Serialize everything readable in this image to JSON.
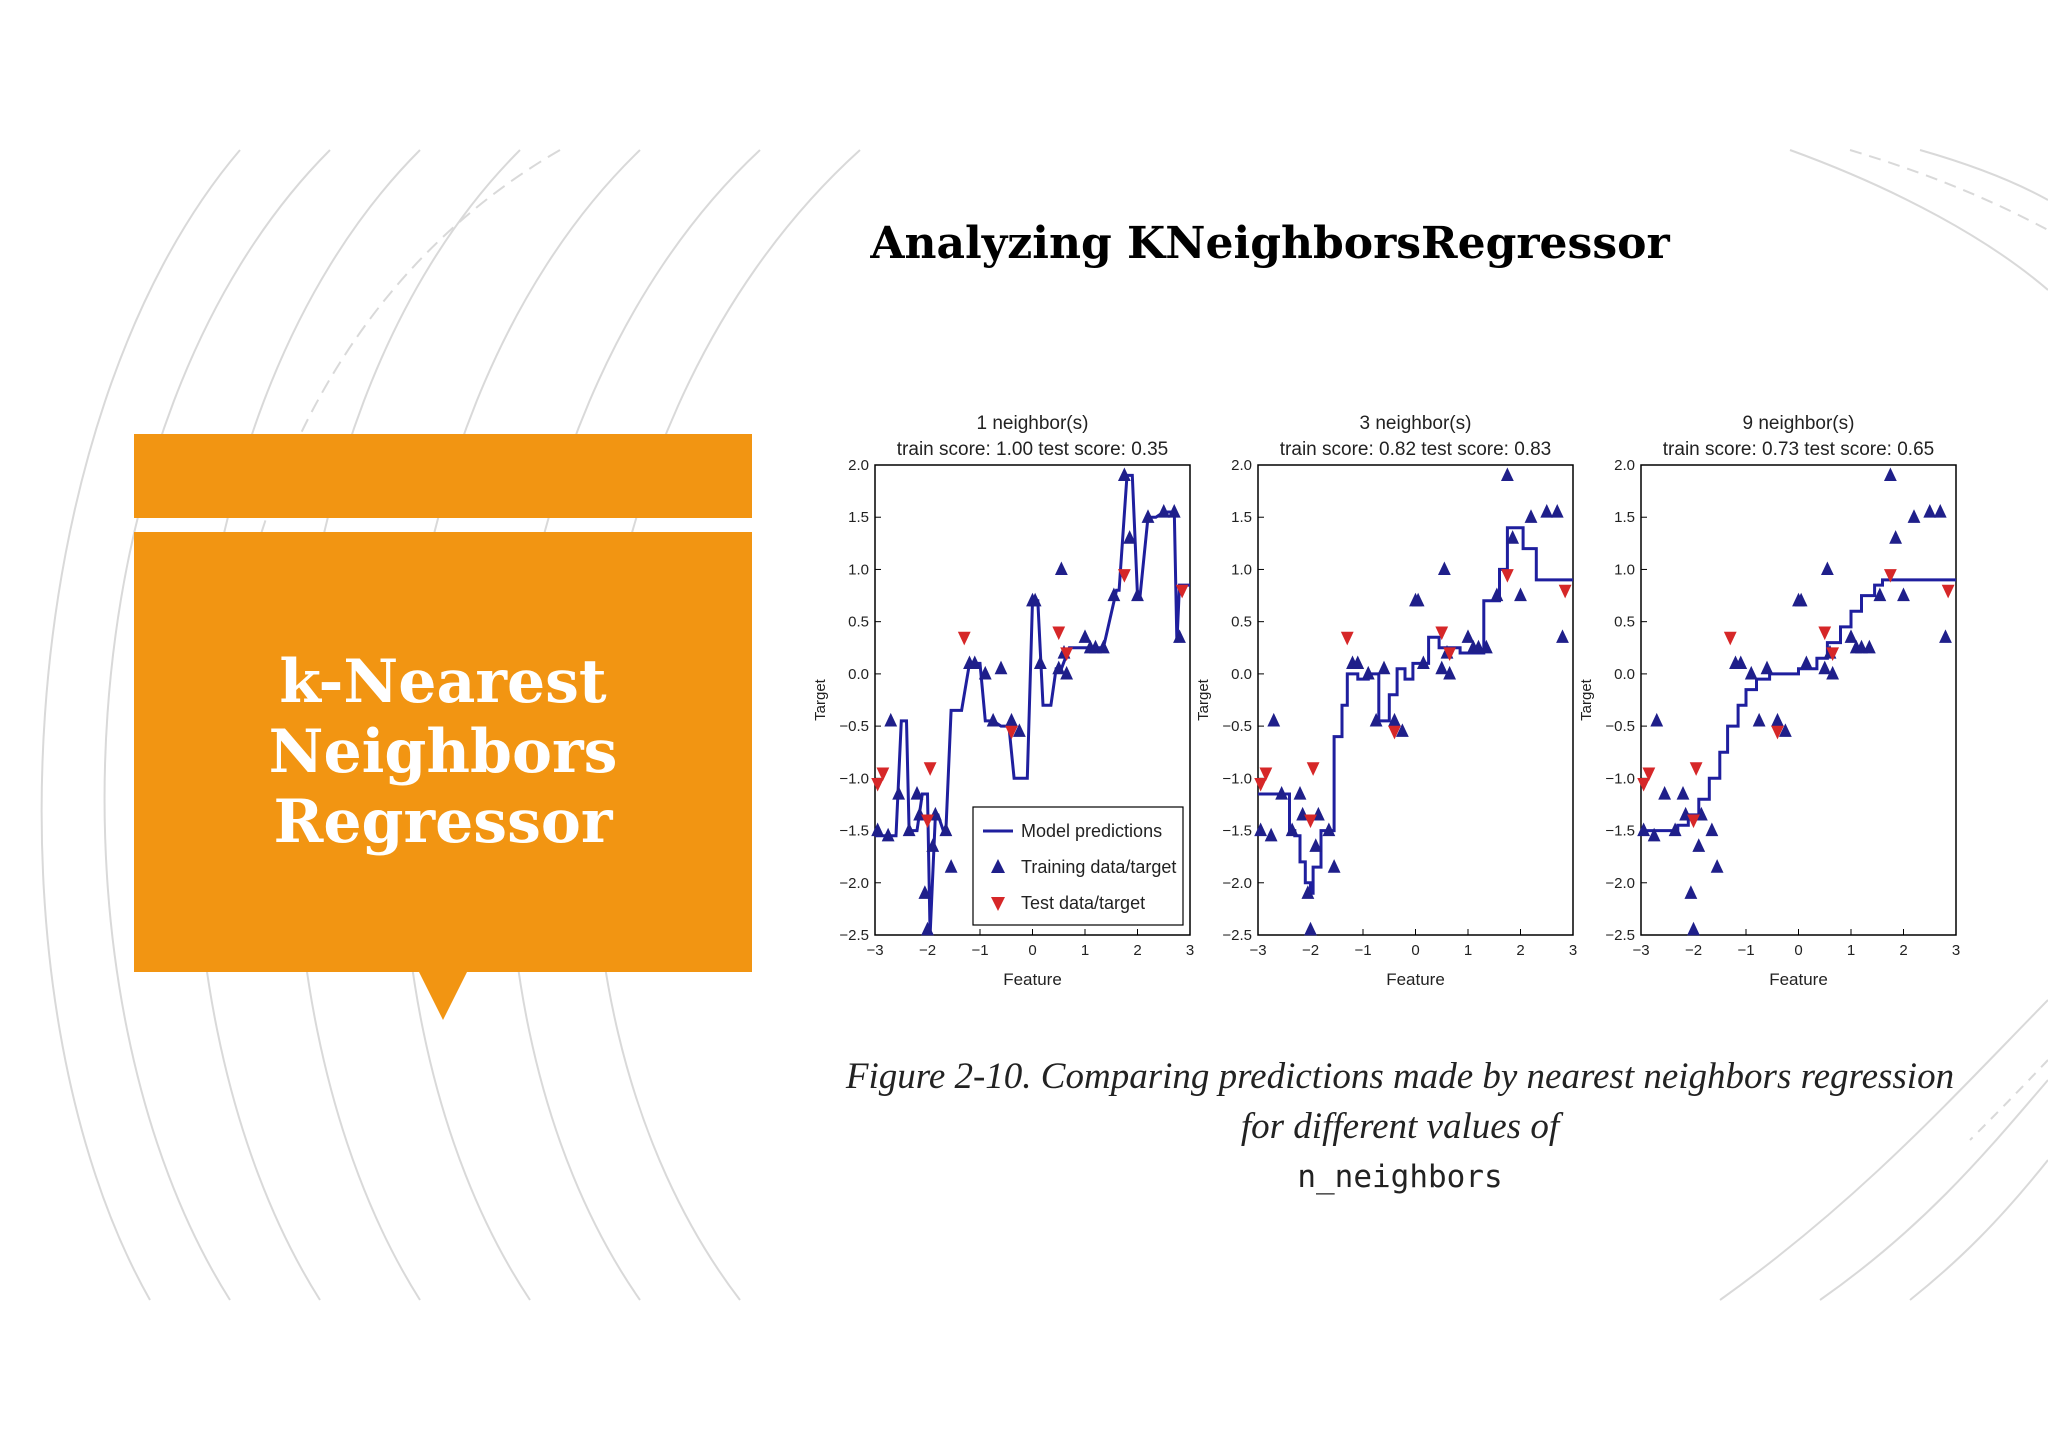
{
  "slide": {
    "title": "Analyzing KNeighborsRegressor",
    "box_title": "k-Nearest Neighbors Regressor",
    "caption": "Figure 2-10. Comparing predictions made by nearest neighbors regression for different values of",
    "caption_code": "n_neighbors",
    "accent_color": "#f29512",
    "decor_line_color": "#d9d9d9"
  },
  "chart_data": [
    {
      "type": "line",
      "title": "1 neighbor(s)",
      "subtitle": "train score: 1.00 test score: 0.35",
      "xlabel": "Feature",
      "ylabel": "Target",
      "xlim": [
        -3,
        3
      ],
      "ylim": [
        -2.5,
        2.0
      ],
      "xticks": [
        "−3",
        "−2",
        "−1",
        "0",
        "1",
        "2",
        "3"
      ],
      "yticks": [
        "2.0",
        "1.5",
        "1.0",
        "0.5",
        "0.0",
        "−0.5",
        "−1.0",
        "−1.5",
        "−2.0",
        "−2.5"
      ],
      "legend": {
        "position": "lower-right",
        "entries": [
          "Model predictions",
          "Training data/target",
          "Test data/target"
        ]
      },
      "series": [
        {
          "name": "Model predictions",
          "kind": "line",
          "color": "#1f1f9e",
          "x": [
            -3.0,
            -2.6,
            -2.5,
            -2.4,
            -2.35,
            -2.2,
            -2.1,
            -2.0,
            -1.95,
            -1.85,
            -1.8,
            -1.7,
            -1.65,
            -1.55,
            -1.35,
            -1.2,
            -1.0,
            -0.9,
            -0.75,
            -0.6,
            -0.45,
            -0.35,
            -0.1,
            0.0,
            0.1,
            0.2,
            0.35,
            0.45,
            0.55,
            0.7,
            0.85,
            1.1,
            1.25,
            1.35,
            1.6,
            1.65,
            1.8,
            1.9,
            2.0,
            2.05,
            2.2,
            2.35,
            2.5,
            2.7,
            2.75,
            2.8,
            3.0
          ],
          "y": [
            -1.55,
            -1.55,
            -0.45,
            -0.45,
            -1.5,
            -1.5,
            -1.15,
            -1.15,
            -2.5,
            -1.35,
            -1.35,
            -1.5,
            -1.5,
            -0.35,
            -0.35,
            0.1,
            0.1,
            -0.45,
            -0.45,
            -0.5,
            -0.5,
            -1.0,
            -1.0,
            0.7,
            0.7,
            -0.3,
            -0.3,
            0.05,
            0.05,
            0.25,
            0.25,
            0.25,
            0.25,
            0.25,
            0.8,
            0.8,
            1.9,
            1.9,
            0.75,
            0.75,
            1.5,
            1.5,
            1.55,
            1.55,
            0.3,
            0.85,
            0.85
          ]
        },
        {
          "name": "Training data/target",
          "kind": "markers",
          "marker": "triangle-up",
          "color": "#1f1f8a",
          "x": [
            -2.95,
            -2.75,
            -2.7,
            -2.55,
            -2.35,
            -2.2,
            -2.15,
            -2.05,
            -2.0,
            -1.9,
            -1.85,
            -1.65,
            -1.55,
            -1.2,
            -1.1,
            -0.9,
            -0.75,
            -0.6,
            -0.4,
            -0.25,
            0.0,
            0.05,
            0.15,
            0.5,
            0.55,
            0.6,
            0.65,
            1.0,
            1.1,
            1.2,
            1.35,
            1.55,
            1.75,
            1.85,
            2.0,
            2.2,
            2.5,
            2.7,
            2.8
          ],
          "y": [
            -1.5,
            -1.55,
            -0.45,
            -1.15,
            -1.5,
            -1.15,
            -1.35,
            -2.1,
            -2.45,
            -1.65,
            -1.35,
            -1.5,
            -1.85,
            0.1,
            0.1,
            0.0,
            -0.45,
            0.05,
            -0.45,
            -0.55,
            0.7,
            0.7,
            0.1,
            0.05,
            1.0,
            0.2,
            0.0,
            0.35,
            0.25,
            0.25,
            0.25,
            0.75,
            1.9,
            1.3,
            0.75,
            1.5,
            1.55,
            1.55,
            0.35
          ]
        },
        {
          "name": "Test data/target",
          "kind": "markers",
          "marker": "triangle-down",
          "color": "#d62728",
          "x": [
            -2.95,
            -2.85,
            -2.0,
            -1.95,
            -1.3,
            -0.4,
            0.5,
            0.65,
            1.75,
            2.85
          ],
          "y": [
            -1.05,
            -0.95,
            -1.4,
            -0.9,
            0.35,
            -0.55,
            0.4,
            0.2,
            0.95,
            0.8
          ]
        }
      ]
    },
    {
      "type": "line",
      "title": "3 neighbor(s)",
      "subtitle": "train score: 0.82 test score: 0.83",
      "xlabel": "Feature",
      "ylabel": "Target",
      "xlim": [
        -3,
        3
      ],
      "ylim": [
        -2.5,
        2.0
      ],
      "xticks": [
        "−3",
        "−2",
        "−1",
        "0",
        "1",
        "2",
        "3"
      ],
      "yticks": [
        "2.0",
        "1.5",
        "1.0",
        "0.5",
        "0.0",
        "−0.5",
        "−1.0",
        "−1.5",
        "−2.0",
        "−2.5"
      ],
      "series": [
        {
          "name": "Model predictions",
          "kind": "line",
          "color": "#1f1f9e",
          "x": [
            -3.0,
            -2.4,
            -2.4,
            -2.3,
            -2.3,
            -2.2,
            -2.2,
            -2.1,
            -2.1,
            -2.0,
            -2.0,
            -1.95,
            -1.95,
            -1.8,
            -1.8,
            -1.55,
            -1.55,
            -1.4,
            -1.4,
            -1.3,
            -1.3,
            -1.1,
            -1.1,
            -0.9,
            -0.9,
            -0.7,
            -0.7,
            -0.5,
            -0.5,
            -0.35,
            -0.35,
            -0.2,
            -0.2,
            -0.05,
            -0.05,
            0.25,
            0.25,
            0.45,
            0.45,
            0.85,
            0.85,
            1.05,
            1.05,
            1.3,
            1.3,
            1.6,
            1.6,
            1.75,
            1.75,
            2.05,
            2.05,
            2.3,
            2.3,
            2.5,
            2.5,
            3.0
          ],
          "y": [
            -1.15,
            -1.15,
            -1.5,
            -1.5,
            -1.55,
            -1.55,
            -1.8,
            -1.8,
            -2.0,
            -2.0,
            -2.1,
            -2.1,
            -1.85,
            -1.85,
            -1.5,
            -1.5,
            -0.6,
            -0.6,
            -0.3,
            -0.3,
            0.0,
            0.0,
            -0.05,
            -0.05,
            0.0,
            0.0,
            -0.45,
            -0.45,
            -0.2,
            -0.2,
            0.05,
            0.05,
            -0.05,
            -0.05,
            0.1,
            0.1,
            0.35,
            0.35,
            0.25,
            0.25,
            0.2,
            0.2,
            0.2,
            0.2,
            0.7,
            0.7,
            1.0,
            1.0,
            1.4,
            1.4,
            1.2,
            1.2,
            0.9,
            0.9,
            0.9,
            0.9
          ]
        },
        {
          "name": "Training data/target",
          "kind": "markers",
          "marker": "triangle-up",
          "color": "#1f1f8a",
          "x": [
            -2.95,
            -2.75,
            -2.7,
            -2.55,
            -2.35,
            -2.2,
            -2.15,
            -2.05,
            -2.0,
            -1.9,
            -1.85,
            -1.65,
            -1.55,
            -1.2,
            -1.1,
            -0.9,
            -0.75,
            -0.6,
            -0.4,
            -0.25,
            0.0,
            0.05,
            0.15,
            0.5,
            0.55,
            0.6,
            0.65,
            1.0,
            1.1,
            1.2,
            1.35,
            1.55,
            1.75,
            1.85,
            2.0,
            2.2,
            2.5,
            2.7,
            2.8
          ],
          "y": [
            -1.5,
            -1.55,
            -0.45,
            -1.15,
            -1.5,
            -1.15,
            -1.35,
            -2.1,
            -2.45,
            -1.65,
            -1.35,
            -1.5,
            -1.85,
            0.1,
            0.1,
            0.0,
            -0.45,
            0.05,
            -0.45,
            -0.55,
            0.7,
            0.7,
            0.1,
            0.05,
            1.0,
            0.2,
            0.0,
            0.35,
            0.25,
            0.25,
            0.25,
            0.75,
            1.9,
            1.3,
            0.75,
            1.5,
            1.55,
            1.55,
            0.35
          ]
        },
        {
          "name": "Test data/target",
          "kind": "markers",
          "marker": "triangle-down",
          "color": "#d62728",
          "x": [
            -2.95,
            -2.85,
            -2.0,
            -1.95,
            -1.3,
            -0.4,
            0.5,
            0.65,
            1.75,
            2.85
          ],
          "y": [
            -1.05,
            -0.95,
            -1.4,
            -0.9,
            0.35,
            -0.55,
            0.4,
            0.2,
            0.95,
            0.8
          ]
        }
      ]
    },
    {
      "type": "line",
      "title": "9 neighbor(s)",
      "subtitle": "train score: 0.73 test score: 0.65",
      "xlabel": "Feature",
      "ylabel": "Target",
      "xlim": [
        -3,
        3
      ],
      "ylim": [
        -2.5,
        2.0
      ],
      "xticks": [
        "−3",
        "−2",
        "−1",
        "0",
        "1",
        "2",
        "3"
      ],
      "yticks": [
        "2.0",
        "1.5",
        "1.0",
        "0.5",
        "0.0",
        "−0.5",
        "−1.0",
        "−1.5",
        "−2.0",
        "−2.5"
      ],
      "series": [
        {
          "name": "Model predictions",
          "kind": "line",
          "color": "#1f1f9e",
          "x": [
            -3.0,
            -2.3,
            -2.3,
            -2.1,
            -2.1,
            -1.9,
            -1.9,
            -1.7,
            -1.7,
            -1.5,
            -1.5,
            -1.35,
            -1.35,
            -1.15,
            -1.15,
            -1.0,
            -1.0,
            -0.8,
            -0.8,
            -0.55,
            -0.55,
            -0.4,
            -0.4,
            0.0,
            0.0,
            0.35,
            0.35,
            0.55,
            0.55,
            0.8,
            0.8,
            1.0,
            1.0,
            1.2,
            1.2,
            1.45,
            1.45,
            1.6,
            1.6,
            3.0
          ],
          "y": [
            -1.5,
            -1.5,
            -1.45,
            -1.45,
            -1.35,
            -1.35,
            -1.2,
            -1.2,
            -1.0,
            -1.0,
            -0.75,
            -0.75,
            -0.5,
            -0.5,
            -0.3,
            -0.3,
            -0.15,
            -0.15,
            -0.05,
            -0.05,
            0.0,
            0.0,
            0.0,
            0.0,
            0.05,
            0.05,
            0.15,
            0.15,
            0.3,
            0.3,
            0.45,
            0.45,
            0.6,
            0.6,
            0.75,
            0.75,
            0.85,
            0.85,
            0.9,
            0.9
          ]
        },
        {
          "name": "Training data/target",
          "kind": "markers",
          "marker": "triangle-up",
          "color": "#1f1f8a",
          "x": [
            -2.95,
            -2.75,
            -2.7,
            -2.55,
            -2.35,
            -2.2,
            -2.15,
            -2.05,
            -2.0,
            -1.9,
            -1.85,
            -1.65,
            -1.55,
            -1.2,
            -1.1,
            -0.9,
            -0.75,
            -0.6,
            -0.4,
            -0.25,
            0.0,
            0.05,
            0.15,
            0.5,
            0.55,
            0.6,
            0.65,
            1.0,
            1.1,
            1.2,
            1.35,
            1.55,
            1.75,
            1.85,
            2.0,
            2.2,
            2.5,
            2.7,
            2.8
          ],
          "y": [
            -1.5,
            -1.55,
            -0.45,
            -1.15,
            -1.5,
            -1.15,
            -1.35,
            -2.1,
            -2.45,
            -1.65,
            -1.35,
            -1.5,
            -1.85,
            0.1,
            0.1,
            0.0,
            -0.45,
            0.05,
            -0.45,
            -0.55,
            0.7,
            0.7,
            0.1,
            0.05,
            1.0,
            0.2,
            0.0,
            0.35,
            0.25,
            0.25,
            0.25,
            0.75,
            1.9,
            1.3,
            0.75,
            1.5,
            1.55,
            1.55,
            0.35
          ]
        },
        {
          "name": "Test data/target",
          "kind": "markers",
          "marker": "triangle-down",
          "color": "#d62728",
          "x": [
            -2.95,
            -2.85,
            -2.0,
            -1.95,
            -1.3,
            -0.4,
            0.5,
            0.65,
            1.75,
            2.85
          ],
          "y": [
            -1.05,
            -0.95,
            -1.4,
            -0.9,
            0.35,
            -0.55,
            0.4,
            0.2,
            0.95,
            0.8
          ]
        }
      ]
    }
  ]
}
